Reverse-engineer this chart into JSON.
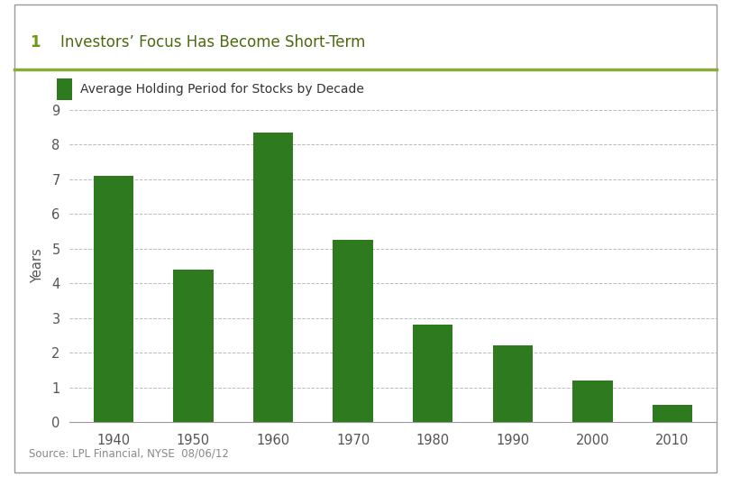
{
  "title_number": "1",
  "title_text": "Investors’ Focus Has Become Short-Term",
  "legend_label": "Average Holding Period for Stocks by Decade",
  "categories": [
    "1940",
    "1950",
    "1960",
    "1970",
    "1980",
    "1990",
    "2000",
    "2010"
  ],
  "values": [
    7.1,
    4.4,
    8.35,
    5.25,
    2.8,
    2.2,
    1.2,
    0.5
  ],
  "bar_color": "#2d7a1f",
  "ylabel": "Years",
  "ylim": [
    0,
    9
  ],
  "yticks": [
    0,
    1,
    2,
    3,
    4,
    5,
    6,
    7,
    8,
    9
  ],
  "source_text": "Source: LPL Financial, NYSE  08/06/12",
  "title_bg_color": "#eeefcc",
  "title_border_color": "#8aaa3a",
  "outer_border_color": "#999999",
  "grid_color": "#bbbbbb",
  "legend_square_color": "#2d7a1f",
  "title_number_color": "#6a9a10",
  "title_font_color": "#4a6a10",
  "axis_text_color": "#555555",
  "source_text_color": "#888888",
  "background_color": "#ffffff",
  "figwidth": 8.11,
  "figheight": 5.29,
  "dpi": 100
}
